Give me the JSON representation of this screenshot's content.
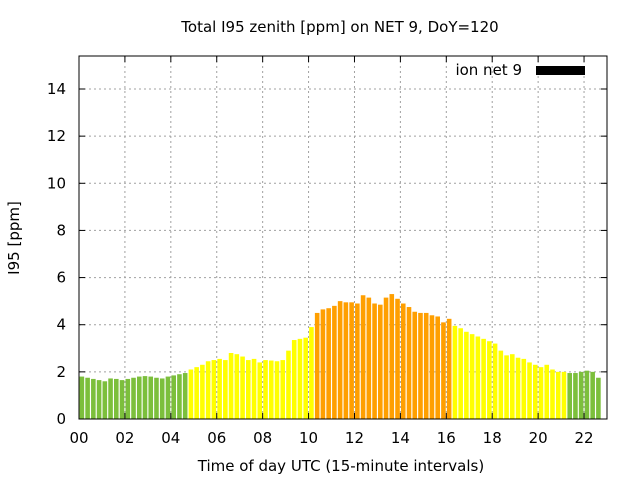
{
  "chart_data": {
    "type": "bar",
    "title": "Total I95 zenith [ppm] on NET 9, DoY=120",
    "xlabel": "Time of day UTC (15-minute intervals)",
    "ylabel": "I95 [ppm]",
    "xlim": [
      0,
      23
    ],
    "ylim": [
      0,
      15.4
    ],
    "xticks": [
      0,
      2,
      4,
      6,
      8,
      10,
      12,
      14,
      16,
      18,
      20,
      22
    ],
    "xtick_labels": [
      "00",
      "02",
      "04",
      "06",
      "08",
      "10",
      "12",
      "14",
      "16",
      "18",
      "20",
      "22"
    ],
    "yticks": [
      0,
      2,
      4,
      6,
      8,
      10,
      12,
      14
    ],
    "ytick_labels": [
      "0",
      "2",
      "4",
      "6",
      "8",
      "10",
      "12",
      "14"
    ],
    "grid": true,
    "legend": {
      "label": "ion net 9",
      "color": "#000000",
      "position": "top-right"
    },
    "bar_step_hours": 0.25,
    "colors": {
      "low": "#7cbf3c",
      "mid": "#ffff00",
      "high": "#ff9f00"
    },
    "values": [
      1.8,
      1.75,
      1.7,
      1.65,
      1.6,
      1.72,
      1.7,
      1.65,
      1.7,
      1.75,
      1.8,
      1.82,
      1.8,
      1.75,
      1.72,
      1.8,
      1.85,
      1.9,
      1.95,
      2.1,
      2.2,
      2.3,
      2.45,
      2.5,
      2.55,
      2.5,
      2.8,
      2.75,
      2.65,
      2.5,
      2.55,
      2.4,
      2.5,
      2.48,
      2.45,
      2.5,
      2.9,
      3.35,
      3.4,
      3.45,
      3.9,
      4.5,
      4.65,
      4.7,
      4.8,
      5.0,
      4.95,
      4.95,
      4.9,
      5.25,
      5.15,
      4.9,
      4.85,
      5.15,
      5.3,
      5.1,
      4.9,
      4.75,
      4.55,
      4.5,
      4.5,
      4.4,
      4.35,
      4.1,
      4.25,
      3.95,
      3.85,
      3.7,
      3.6,
      3.5,
      3.4,
      3.3,
      3.2,
      2.9,
      2.7,
      2.75,
      2.6,
      2.55,
      2.4,
      2.3,
      2.2,
      2.3,
      2.1,
      2.0,
      2.0,
      1.95,
      1.95,
      2.0,
      2.05,
      2.0,
      1.75
    ],
    "color_classes": [
      "low",
      "low",
      "low",
      "low",
      "low",
      "low",
      "low",
      "low",
      "low",
      "low",
      "low",
      "low",
      "low",
      "low",
      "low",
      "low",
      "low",
      "low",
      "low",
      "mid",
      "mid",
      "mid",
      "mid",
      "mid",
      "mid",
      "mid",
      "mid",
      "mid",
      "mid",
      "mid",
      "mid",
      "mid",
      "mid",
      "mid",
      "mid",
      "mid",
      "mid",
      "mid",
      "mid",
      "mid",
      "mid",
      "high",
      "high",
      "high",
      "high",
      "high",
      "high",
      "high",
      "high",
      "high",
      "high",
      "high",
      "high",
      "high",
      "high",
      "high",
      "high",
      "high",
      "high",
      "high",
      "high",
      "high",
      "high",
      "high",
      "high",
      "mid",
      "mid",
      "mid",
      "mid",
      "mid",
      "mid",
      "mid",
      "mid",
      "mid",
      "mid",
      "mid",
      "mid",
      "mid",
      "mid",
      "mid",
      "mid",
      "mid",
      "mid",
      "mid",
      "mid",
      "low",
      "low",
      "low",
      "low",
      "low",
      "low"
    ]
  }
}
